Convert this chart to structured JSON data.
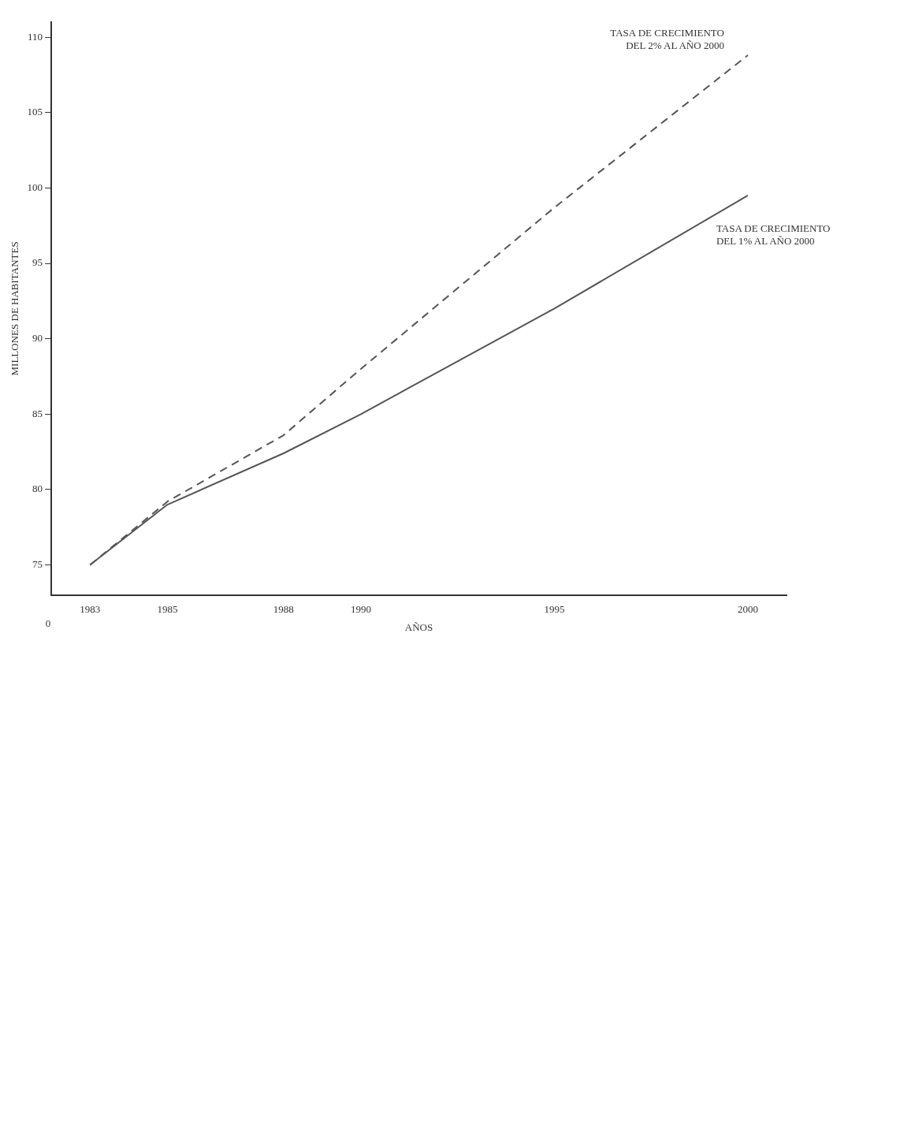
{
  "chart_data": {
    "type": "line",
    "xlabel": "AÑOS",
    "ylabel": "MILLONES DE HABITANTES",
    "x": [
      1983,
      1985,
      1988,
      1990,
      1995,
      2000
    ],
    "series": [
      {
        "name": "TASA DE CRECIMIENTO DEL 2% AL AÑO 2000",
        "color": "#555555",
        "line_style": "dashed",
        "values": [
          75,
          79.2,
          83.6,
          88,
          98.7,
          108.8
        ]
      },
      {
        "name": "TASA DE CRECIMIENTO DEL 1% AL AÑO 2000",
        "color": "#555555",
        "line_style": "solid",
        "values": [
          75,
          79,
          82.4,
          85,
          92,
          99.5
        ]
      }
    ],
    "xlim": [
      1982,
      2001
    ],
    "xticks": [
      1983,
      1985,
      1988,
      1990,
      1995,
      2000
    ],
    "ylim": [
      73,
      111
    ],
    "yticks": [
      75,
      80,
      85,
      90,
      95,
      100,
      105,
      110
    ],
    "annotations": [
      "0"
    ],
    "grid": false,
    "legend": false,
    "marker": "none"
  }
}
